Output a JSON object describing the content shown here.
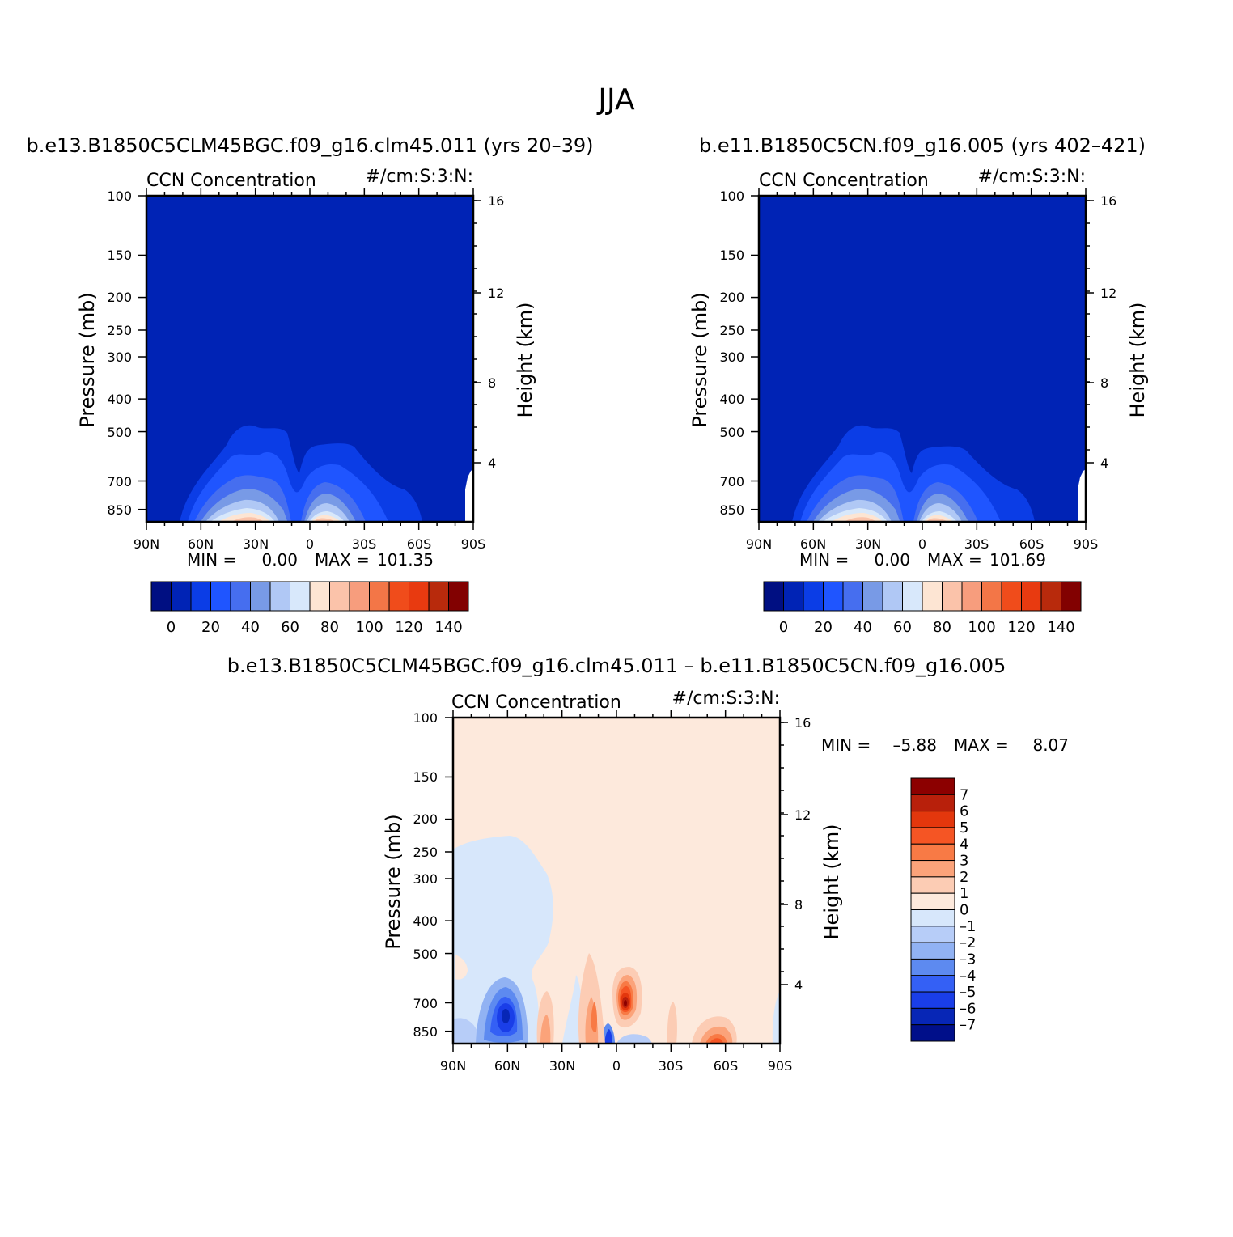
{
  "figure": {
    "title": "JJA",
    "diff_label": "b.e13.B1850C5CLM45BGC.f09_g16.clm45.011 – b.e11.B1850C5CN.f09_g16.005"
  },
  "chart_data": [
    {
      "type": "contour",
      "panel": "top-left",
      "case_title": "b.e13.B1850C5CLM45BGC.f09_g16.clm45.011 (yrs 20–39)",
      "field_label": "CCN Concentration",
      "units_label": "#/cm:S:3:N:",
      "ylabel": "Pressure (mb)",
      "ylabel_right": "Height (km)",
      "x_ticks": [
        "90N",
        "60N",
        "30N",
        "0",
        "30S",
        "60S",
        "90S"
      ],
      "y_ticks": [
        100,
        150,
        200,
        250,
        300,
        400,
        500,
        700,
        850
      ],
      "y_ticks_right": [
        16,
        12,
        8,
        4
      ],
      "min_label": "MIN =",
      "min_value": "0.00",
      "max_label": "MAX =",
      "max_value": "101.35",
      "colorbar_labels": [
        "0",
        "20",
        "40",
        "60",
        "80",
        "100",
        "120",
        "140"
      ],
      "colorbar_colors": [
        "#000f82",
        "#0023b5",
        "#0b3de6",
        "#1f55ff",
        "#466eef",
        "#789ae6",
        "#b0c8f5",
        "#d8e8fb",
        "#fde5d3",
        "#fbc3aa",
        "#f79d7d",
        "#f37647",
        "#f04c1b",
        "#e83a10",
        "#b82a0c",
        "#820101"
      ]
    },
    {
      "type": "contour",
      "panel": "top-right",
      "case_title": "b.e11.B1850C5CN.f09_g16.005 (yrs 402–421)",
      "field_label": "CCN Concentration",
      "units_label": "#/cm:S:3:N:",
      "ylabel": "Pressure (mb)",
      "ylabel_right": "Height (km)",
      "x_ticks": [
        "90N",
        "60N",
        "30N",
        "0",
        "30S",
        "60S",
        "90S"
      ],
      "y_ticks": [
        100,
        150,
        200,
        250,
        300,
        400,
        500,
        700,
        850
      ],
      "y_ticks_right": [
        16,
        12,
        8,
        4
      ],
      "min_label": "MIN =",
      "min_value": "0.00",
      "max_label": "MAX =",
      "max_value": "101.69",
      "colorbar_labels": [
        "0",
        "20",
        "40",
        "60",
        "80",
        "100",
        "120",
        "140"
      ],
      "colorbar_colors": [
        "#000f82",
        "#0023b5",
        "#0b3de6",
        "#1f55ff",
        "#466eef",
        "#789ae6",
        "#b0c8f5",
        "#d8e8fb",
        "#fde5d3",
        "#fbc3aa",
        "#f79d7d",
        "#f37647",
        "#f04c1b",
        "#e83a10",
        "#b82a0c",
        "#820101"
      ]
    },
    {
      "type": "contour",
      "panel": "bottom-difference",
      "case_title": "b.e13.B1850C5CLM45BGC.f09_g16.clm45.011 – b.e11.B1850C5CN.f09_g16.005",
      "field_label": "CCN Concentration",
      "units_label": "#/cm:S:3:N:",
      "ylabel": "Pressure (mb)",
      "ylabel_right": "Height (km)",
      "x_ticks": [
        "90N",
        "60N",
        "30N",
        "0",
        "30S",
        "60S",
        "90S"
      ],
      "y_ticks": [
        100,
        150,
        200,
        250,
        300,
        400,
        500,
        700,
        850
      ],
      "y_ticks_right": [
        16,
        12,
        8,
        4
      ],
      "min_label": "MIN =",
      "min_value": "–5.88",
      "max_label": "MAX =",
      "max_value": "8.07",
      "colorbar_labels": [
        "7",
        "6",
        "5",
        "4",
        "3",
        "2",
        "1",
        "0",
        "–1",
        "–2",
        "–3",
        "–4",
        "–5",
        "–6",
        "–7"
      ],
      "colorbar_colors": [
        "#8c0000",
        "#b8200b",
        "#e3370d",
        "#f55524",
        "#f87a45",
        "#fba37a",
        "#fcccb4",
        "#fde9dc",
        "#d7e7fb",
        "#b7cdf8",
        "#91b2f3",
        "#5d8af0",
        "#3460f5",
        "#1a3ee8",
        "#0726b6",
        "#000f8a"
      ]
    }
  ]
}
